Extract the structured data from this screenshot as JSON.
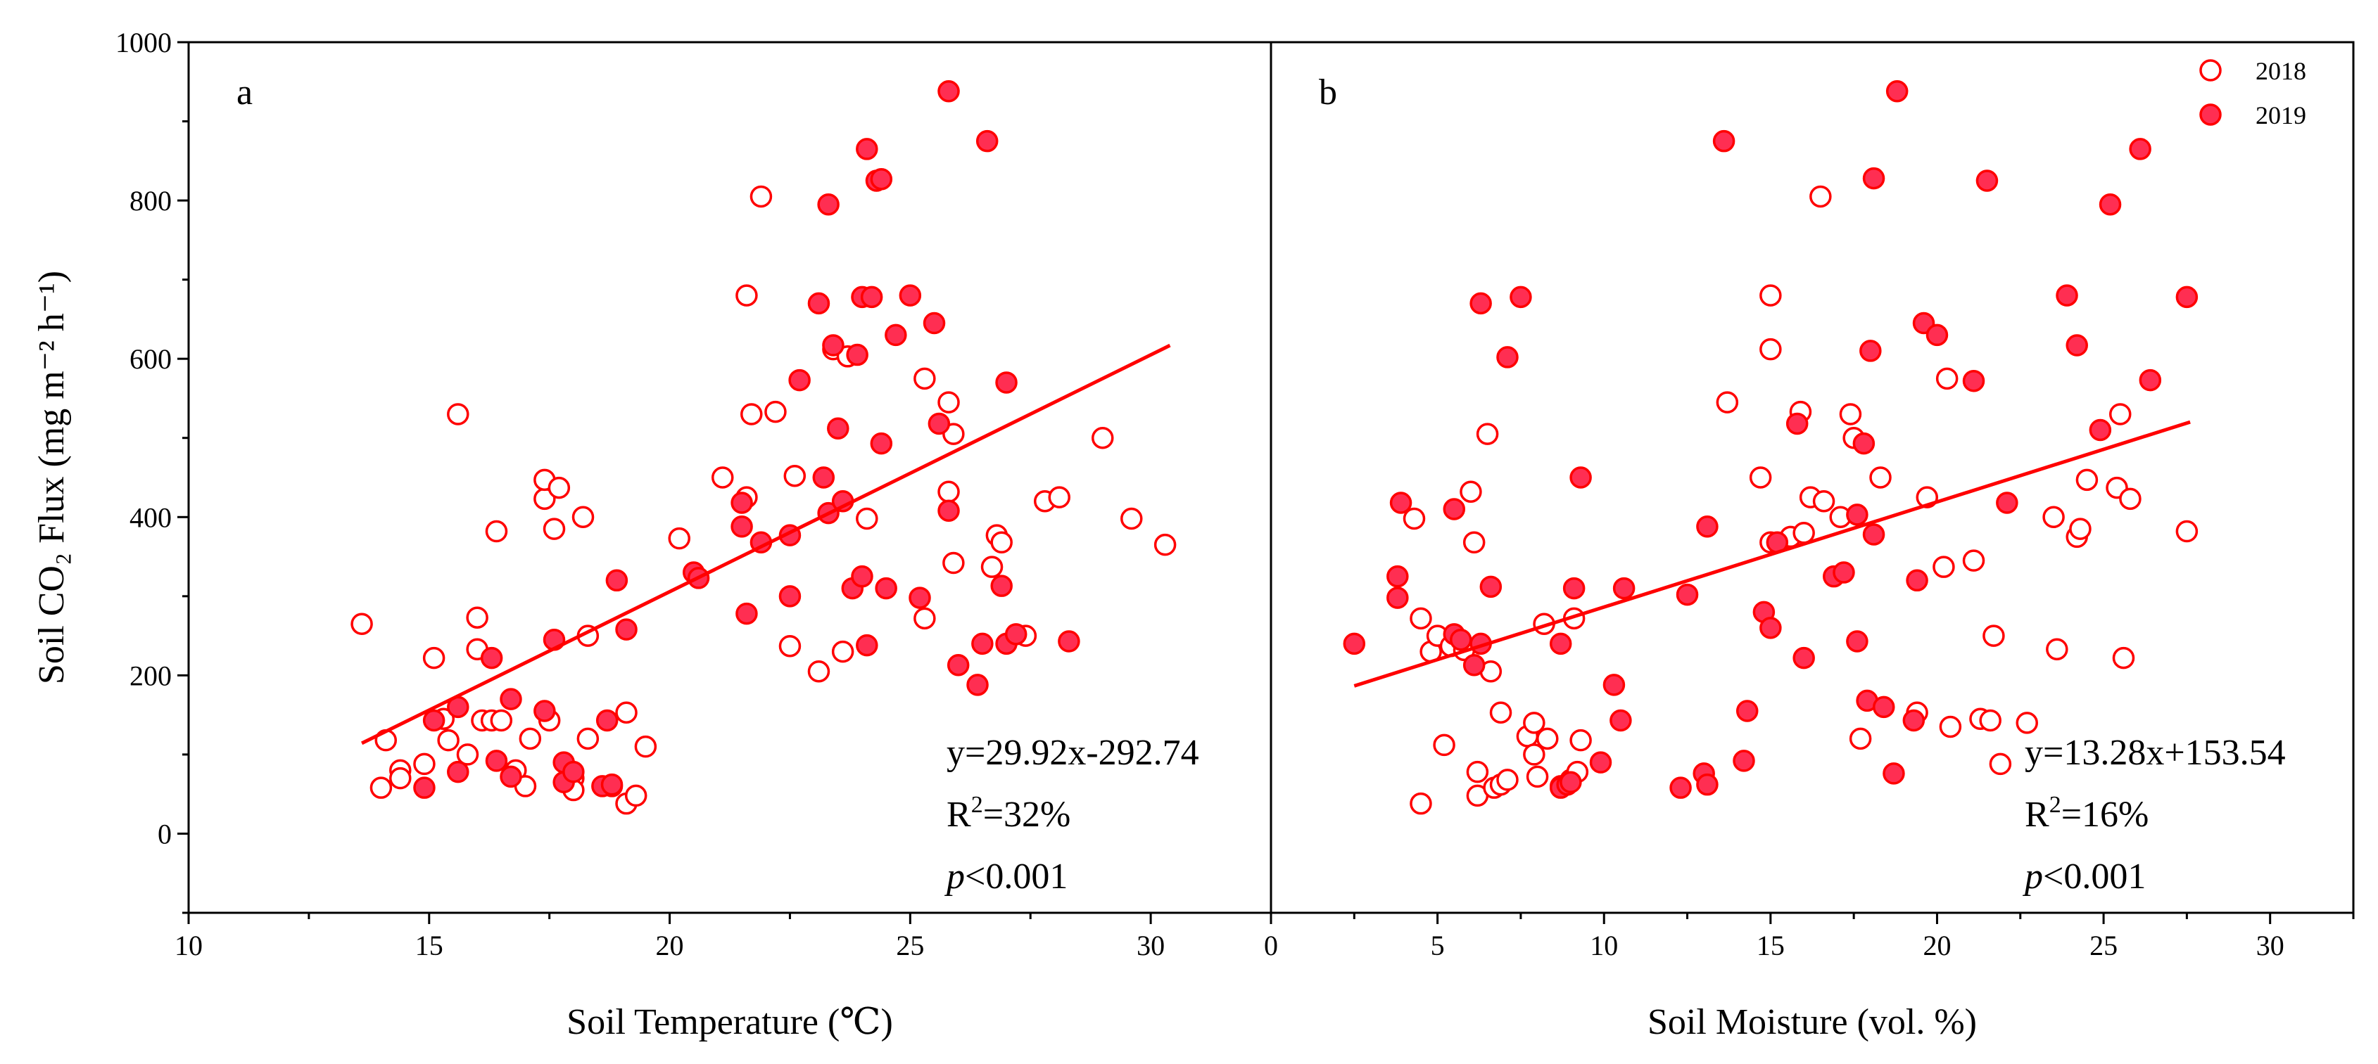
{
  "chart_data": [
    {
      "type": "scatter",
      "panel_label": "a",
      "xlabel": "Soil Temperature (℃)",
      "ylabel": "Soil CO₂ Flux (mg m⁻² h⁻¹)",
      "xlim": [
        10,
        32.5
      ],
      "ylim": [
        -100,
        1000
      ],
      "xticks": [
        10,
        15,
        20,
        25,
        30
      ],
      "yticks": [
        0,
        200,
        400,
        600,
        800,
        1000
      ],
      "fit": {
        "x": [
          13.6,
          30.4
        ],
        "y": [
          114.2,
          616.9
        ]
      },
      "equation": "y=29.92x-292.74",
      "r2_prefix": "R",
      "r2_sup": "2",
      "r2_value": "=32%",
      "p_prefix": "p",
      "p_value": "<0.001",
      "series": [
        {
          "name": "2018",
          "filled": false,
          "points": [
            [
              13.6,
              265
            ],
            [
              14.0,
              58
            ],
            [
              14.1,
              118
            ],
            [
              14.4,
              80
            ],
            [
              14.4,
              70
            ],
            [
              14.9,
              88
            ],
            [
              15.1,
              222
            ],
            [
              15.3,
              145
            ],
            [
              15.4,
              118
            ],
            [
              15.6,
              530
            ],
            [
              15.8,
              100
            ],
            [
              16.0,
              273
            ],
            [
              16.0,
              233
            ],
            [
              16.1,
              143
            ],
            [
              16.3,
              143
            ],
            [
              16.4,
              382
            ],
            [
              16.5,
              143
            ],
            [
              16.8,
              80
            ],
            [
              17.0,
              60
            ],
            [
              17.1,
              120
            ],
            [
              17.4,
              423
            ],
            [
              17.4,
              447
            ],
            [
              17.5,
              143
            ],
            [
              17.6,
              385
            ],
            [
              17.7,
              437
            ],
            [
              18.0,
              70
            ],
            [
              18.0,
              55
            ],
            [
              18.2,
              400
            ],
            [
              18.3,
              250
            ],
            [
              18.3,
              120
            ],
            [
              18.8,
              60
            ],
            [
              19.1,
              153
            ],
            [
              19.1,
              38
            ],
            [
              19.3,
              48
            ],
            [
              19.5,
              110
            ],
            [
              20.2,
              373
            ],
            [
              21.1,
              450
            ],
            [
              21.6,
              425
            ],
            [
              21.6,
              680
            ],
            [
              21.7,
              530
            ],
            [
              21.9,
              805
            ],
            [
              22.2,
              533
            ],
            [
              22.5,
              237
            ],
            [
              22.6,
              452
            ],
            [
              23.1,
              205
            ],
            [
              23.4,
              612
            ],
            [
              23.6,
              230
            ],
            [
              23.7,
              603
            ],
            [
              24.1,
              398
            ],
            [
              25.3,
              575
            ],
            [
              25.3,
              272
            ],
            [
              25.8,
              545
            ],
            [
              25.8,
              432
            ],
            [
              25.9,
              505
            ],
            [
              25.9,
              342
            ],
            [
              26.7,
              337
            ],
            [
              26.8,
              377
            ],
            [
              26.9,
              368
            ],
            [
              27.4,
              250
            ],
            [
              27.8,
              420
            ],
            [
              28.1,
              425
            ],
            [
              29.0,
              500
            ],
            [
              29.6,
              398
            ],
            [
              30.3,
              365
            ]
          ]
        },
        {
          "name": "2019",
          "filled": true,
          "points": [
            [
              14.9,
              58
            ],
            [
              15.1,
              143
            ],
            [
              15.6,
              160
            ],
            [
              15.6,
              78
            ],
            [
              16.3,
              222
            ],
            [
              16.4,
              92
            ],
            [
              16.7,
              170
            ],
            [
              16.7,
              72
            ],
            [
              17.4,
              155
            ],
            [
              17.6,
              245
            ],
            [
              17.8,
              90
            ],
            [
              17.8,
              65
            ],
            [
              18.0,
              78
            ],
            [
              18.6,
              60
            ],
            [
              18.7,
              143
            ],
            [
              18.8,
              62
            ],
            [
              18.9,
              320
            ],
            [
              19.1,
              258
            ],
            [
              20.5,
              330
            ],
            [
              20.6,
              323
            ],
            [
              21.5,
              418
            ],
            [
              21.5,
              388
            ],
            [
              21.6,
              278
            ],
            [
              21.9,
              368
            ],
            [
              22.5,
              377
            ],
            [
              22.5,
              300
            ],
            [
              22.7,
              573
            ],
            [
              23.1,
              670
            ],
            [
              23.2,
              450
            ],
            [
              23.3,
              405
            ],
            [
              23.3,
              795
            ],
            [
              23.4,
              617
            ],
            [
              23.5,
              512
            ],
            [
              23.6,
              420
            ],
            [
              23.8,
              310
            ],
            [
              23.9,
              605
            ],
            [
              24.0,
              325
            ],
            [
              24.0,
              678
            ],
            [
              24.1,
              865
            ],
            [
              24.1,
              238
            ],
            [
              24.2,
              678
            ],
            [
              24.3,
              825
            ],
            [
              24.4,
              827
            ],
            [
              24.4,
              493
            ],
            [
              24.5,
              310
            ],
            [
              24.7,
              630
            ],
            [
              25.0,
              680
            ],
            [
              25.2,
              298
            ],
            [
              25.5,
              645
            ],
            [
              25.6,
              518
            ],
            [
              25.8,
              938
            ],
            [
              25.8,
              408
            ],
            [
              26.0,
              213
            ],
            [
              26.4,
              188
            ],
            [
              26.5,
              240
            ],
            [
              26.6,
              875
            ],
            [
              26.9,
              313
            ],
            [
              27.0,
              570
            ],
            [
              27.0,
              240
            ],
            [
              27.2,
              252
            ],
            [
              28.3,
              243
            ]
          ]
        }
      ]
    },
    {
      "type": "scatter",
      "panel_label": "b",
      "xlabel": "Soil Moisture (vol. %)",
      "ylabel": "",
      "xlim": [
        0,
        32.5
      ],
      "ylim": [
        -100,
        1000
      ],
      "xticks": [
        0,
        5,
        10,
        15,
        20,
        25,
        30
      ],
      "yticks": [
        0,
        200,
        400,
        600,
        800,
        1000
      ],
      "fit": {
        "x": [
          2.5,
          27.6
        ],
        "y": [
          186.7,
          520.1
        ]
      },
      "equation": "y=13.28x+153.54",
      "r2_prefix": "R",
      "r2_sup": "2",
      "r2_value": "=16%",
      "p_prefix": "p",
      "p_value": "<0.001",
      "legend": [
        {
          "label": "2018",
          "filled": false
        },
        {
          "label": "2019",
          "filled": true
        }
      ],
      "series": [
        {
          "name": "2018",
          "filled": false,
          "points": [
            [
              4.3,
              398
            ],
            [
              4.5,
              38
            ],
            [
              4.5,
              272
            ],
            [
              4.8,
              230
            ],
            [
              5.0,
              250
            ],
            [
              5.2,
              112
            ],
            [
              5.4,
              237
            ],
            [
              5.8,
              232
            ],
            [
              6.0,
              432
            ],
            [
              6.1,
              368
            ],
            [
              6.2,
              48
            ],
            [
              6.2,
              78
            ],
            [
              6.5,
              505
            ],
            [
              6.6,
              205
            ],
            [
              6.7,
              58
            ],
            [
              6.9,
              62
            ],
            [
              6.9,
              153
            ],
            [
              7.1,
              68
            ],
            [
              7.7,
              123
            ],
            [
              7.9,
              140
            ],
            [
              7.9,
              100
            ],
            [
              8.0,
              72
            ],
            [
              8.2,
              265
            ],
            [
              8.3,
              120
            ],
            [
              8.7,
              60
            ],
            [
              9.0,
              68
            ],
            [
              9.1,
              272
            ],
            [
              9.2,
              78
            ],
            [
              9.3,
              118
            ],
            [
              13.7,
              545
            ],
            [
              14.7,
              450
            ],
            [
              15.0,
              368
            ],
            [
              15.0,
              680
            ],
            [
              15.0,
              612
            ],
            [
              15.6,
              375
            ],
            [
              15.9,
              533
            ],
            [
              16.0,
              380
            ],
            [
              16.2,
              425
            ],
            [
              16.5,
              805
            ],
            [
              16.6,
              420
            ],
            [
              17.1,
              400
            ],
            [
              17.4,
              530
            ],
            [
              17.5,
              500
            ],
            [
              17.7,
              120
            ],
            [
              18.3,
              450
            ],
            [
              19.4,
              153
            ],
            [
              19.7,
              425
            ],
            [
              20.2,
              337
            ],
            [
              20.3,
              575
            ],
            [
              20.4,
              135
            ],
            [
              21.1,
              345
            ],
            [
              21.3,
              145
            ],
            [
              21.6,
              143
            ],
            [
              21.7,
              250
            ],
            [
              21.9,
              88
            ],
            [
              22.7,
              140
            ],
            [
              23.5,
              400
            ],
            [
              23.6,
              233
            ],
            [
              24.2,
              375
            ],
            [
              24.3,
              385
            ],
            [
              24.5,
              447
            ],
            [
              25.4,
              437
            ],
            [
              25.5,
              530
            ],
            [
              25.6,
              222
            ],
            [
              25.8,
              423
            ],
            [
              27.5,
              382
            ]
          ]
        },
        {
          "name": "2019",
          "filled": true,
          "points": [
            [
              2.5,
              240
            ],
            [
              3.8,
              325
            ],
            [
              3.8,
              298
            ],
            [
              3.9,
              418
            ],
            [
              5.5,
              410
            ],
            [
              5.5,
              252
            ],
            [
              5.7,
              245
            ],
            [
              6.1,
              213
            ],
            [
              6.3,
              670
            ],
            [
              6.3,
              240
            ],
            [
              6.6,
              312
            ],
            [
              7.1,
              602
            ],
            [
              7.5,
              678
            ],
            [
              8.7,
              58
            ],
            [
              8.7,
              240
            ],
            [
              8.9,
              62
            ],
            [
              9.0,
              65
            ],
            [
              9.1,
              310
            ],
            [
              9.3,
              450
            ],
            [
              9.9,
              90
            ],
            [
              10.3,
              188
            ],
            [
              10.5,
              143
            ],
            [
              10.6,
              310
            ],
            [
              12.3,
              58
            ],
            [
              12.5,
              302
            ],
            [
              13.0,
              76
            ],
            [
              13.1,
              62
            ],
            [
              13.1,
              388
            ],
            [
              13.6,
              875
            ],
            [
              14.2,
              92
            ],
            [
              14.3,
              155
            ],
            [
              14.8,
              280
            ],
            [
              15.0,
              260
            ],
            [
              15.2,
              368
            ],
            [
              15.8,
              518
            ],
            [
              16.0,
              222
            ],
            [
              16.9,
              325
            ],
            [
              17.2,
              330
            ],
            [
              17.6,
              403
            ],
            [
              17.6,
              243
            ],
            [
              17.8,
              493
            ],
            [
              17.9,
              168
            ],
            [
              18.0,
              610
            ],
            [
              18.1,
              828
            ],
            [
              18.1,
              378
            ],
            [
              18.4,
              160
            ],
            [
              18.7,
              76
            ],
            [
              18.8,
              938
            ],
            [
              19.3,
              143
            ],
            [
              19.4,
              320
            ],
            [
              19.6,
              645
            ],
            [
              20.0,
              630
            ],
            [
              21.1,
              572
            ],
            [
              21.5,
              825
            ],
            [
              22.1,
              418
            ],
            [
              23.9,
              680
            ],
            [
              24.2,
              617
            ],
            [
              24.9,
              510
            ],
            [
              25.2,
              795
            ],
            [
              26.1,
              865
            ],
            [
              26.4,
              573
            ],
            [
              27.5,
              678
            ]
          ]
        }
      ]
    }
  ]
}
